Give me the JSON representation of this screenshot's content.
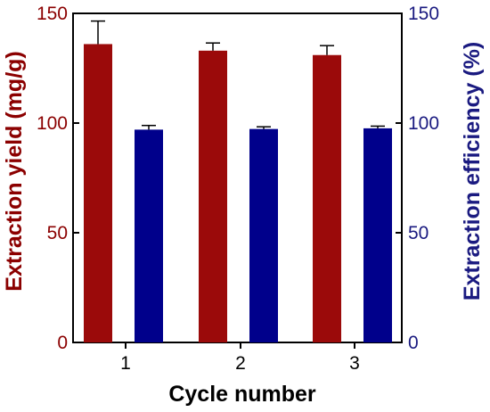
{
  "chart_data": {
    "type": "bar",
    "categories": [
      "1",
      "2",
      "3"
    ],
    "xlabel": "Cycle number",
    "left_axis": {
      "label": "Extraction yield (mg/g)",
      "ylim": [
        0,
        150
      ],
      "ticks": [
        0,
        50,
        100,
        150
      ],
      "color": "#8b0000"
    },
    "right_axis": {
      "label": "Extraction efficiency (%)",
      "ylim": [
        0,
        150
      ],
      "ticks": [
        0,
        50,
        100,
        150
      ],
      "color": "#1a1a80"
    },
    "series": [
      {
        "axis": "left",
        "color": "#9b0a0a",
        "values": [
          136,
          133,
          131
        ],
        "errors": [
          10.5,
          3.5,
          4.3
        ]
      },
      {
        "axis": "right",
        "color": "#00008b",
        "values": [
          97,
          97.3,
          97.6
        ],
        "errors": [
          1.9,
          1.0,
          1.0
        ]
      }
    ],
    "grid": false
  }
}
